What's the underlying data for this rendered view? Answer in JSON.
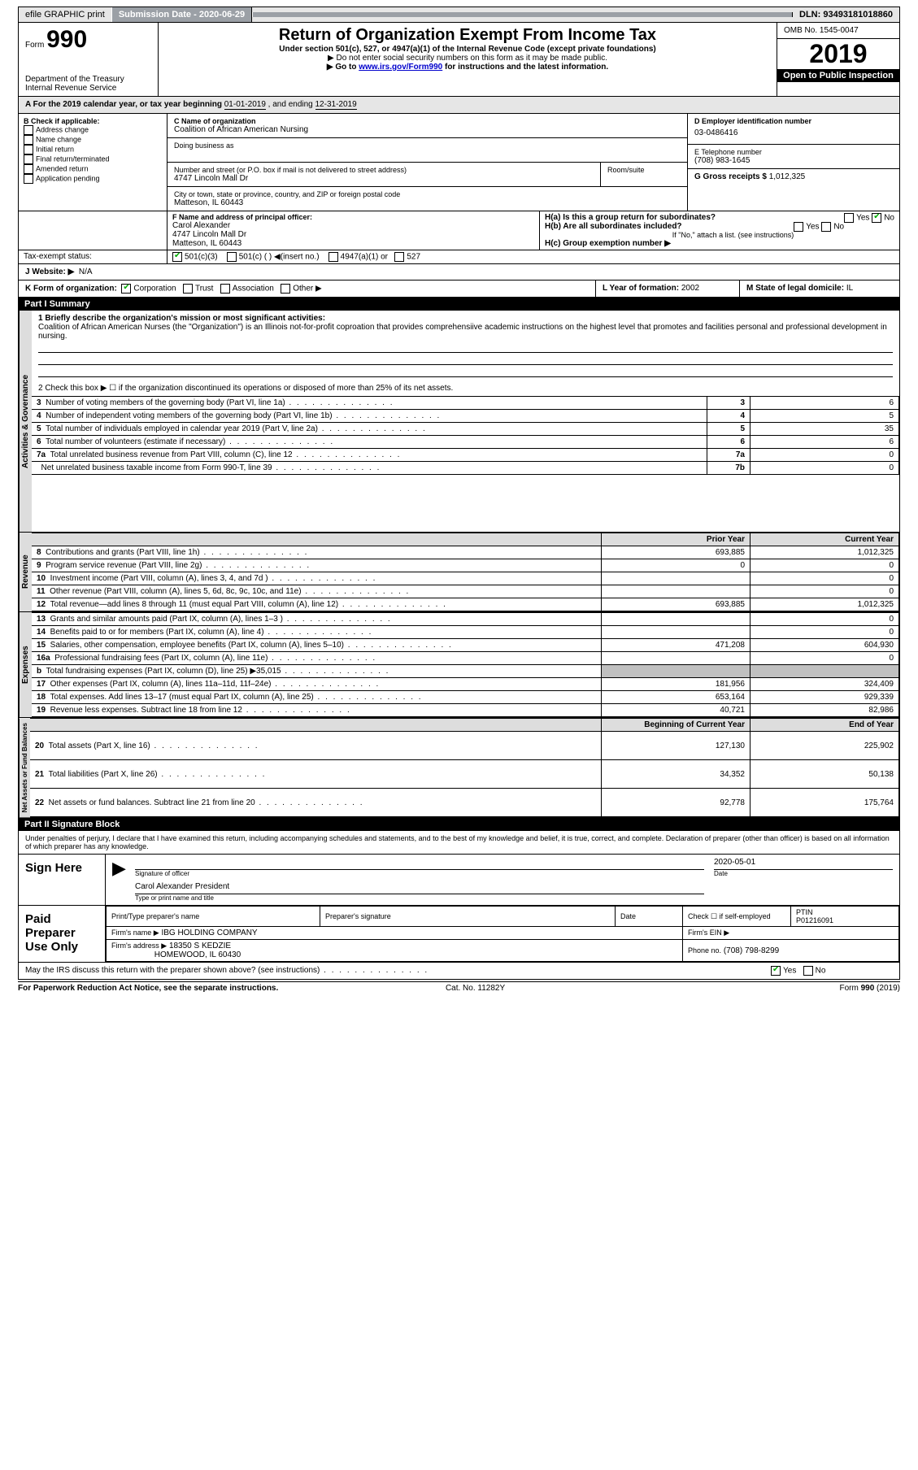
{
  "topbar": {
    "efile": "efile GRAPHIC print",
    "sub": "Submission Date - 2020-06-29",
    "dln": "DLN: 93493181018860"
  },
  "header": {
    "form": "Form",
    "form_num": "990",
    "dept": "Department of the Treasury\nInternal Revenue Service",
    "title": "Return of Organization Exempt From Income Tax",
    "sub1": "Under section 501(c), 527, or 4947(a)(1) of the Internal Revenue Code (except private foundations)",
    "sub2": "Do not enter social security numbers on this form as it may be made public.",
    "sub3_pre": "Go to ",
    "sub3_link": "www.irs.gov/Form990",
    "sub3_post": " for instructions and the latest information.",
    "omb": "OMB No. 1545-0047",
    "year": "2019",
    "open": "Open to Public Inspection"
  },
  "period": {
    "label_a": "A For the 2019 calendar year, or tax year beginning ",
    "begin": "01-01-2019",
    "mid": " , and ending ",
    "end": "12-31-2019"
  },
  "b": {
    "label": "B Check if applicable:",
    "opts": [
      "Address change",
      "Name change",
      "Initial return",
      "Final return/terminated",
      "Amended return",
      "Application pending"
    ]
  },
  "c": {
    "name_label": "C Name of organization",
    "name": "Coalition of African American Nursing",
    "dba_label": "Doing business as",
    "addr_label": "Number and street (or P.O. box if mail is not delivered to street address)",
    "room_label": "Room/suite",
    "addr": "4747 Lincoln Mall Dr",
    "city_label": "City or town, state or province, country, and ZIP or foreign postal code",
    "city": "Matteson, IL  60443"
  },
  "d": {
    "label": "D Employer identification number",
    "val": "03-0486416"
  },
  "e": {
    "label": "E Telephone number",
    "val": "(708) 983-1645"
  },
  "g": {
    "label": "G Gross receipts $",
    "val": "1,012,325"
  },
  "f": {
    "label": "F  Name and address of principal officer:",
    "name": "Carol Alexander",
    "addr": "4747 Lincoln Mall Dr",
    "city": "Matteson, IL  60443"
  },
  "h": {
    "a_label": "H(a)  Is this a group return for subordinates?",
    "b_label": "H(b)  Are all subordinates included?",
    "b_note": "If \"No,\" attach a list. (see instructions)",
    "c_label": "H(c)  Group exemption number ▶"
  },
  "i": {
    "label": "Tax-exempt status:",
    "opts": [
      "501(c)(3)",
      "501(c) (  ) ◀(insert no.)",
      "4947(a)(1) or",
      "527"
    ]
  },
  "j": {
    "label": "J   Website: ▶",
    "val": "N/A"
  },
  "k": {
    "label": "K Form of organization:",
    "opts": [
      "Corporation",
      "Trust",
      "Association",
      "Other ▶"
    ]
  },
  "l": {
    "label": "L Year of formation:",
    "val": "2002"
  },
  "m": {
    "label": "M State of legal domicile:",
    "val": "IL"
  },
  "part1": {
    "hdr": "Part I      Summary"
  },
  "summary": {
    "sections": [
      "Activities & Governance",
      "Revenue",
      "Expenses",
      "Net Assets or Fund Balances"
    ],
    "l1_label": "1  Briefly describe the organization's mission or most significant activities:",
    "l1_text": "Coalition of African American Nurses (the \"Organization\") is an Illinois not-for-profit coproation that provides comprehensiive academic instructions on the highest level that promotes and facilities personal and professional development in nursing.",
    "l2": "2   Check this box ▶ ☐  if the organization discontinued its operations or disposed of more than 25% of its net assets.",
    "prior_hdr": "Prior Year",
    "current_hdr": "Current Year",
    "rows": [
      {
        "n": "3",
        "t": "Number of voting members of the governing body (Part VI, line 1a)",
        "box": "3",
        "cur": "6"
      },
      {
        "n": "4",
        "t": "Number of independent voting members of the governing body (Part VI, line 1b)",
        "box": "4",
        "cur": "5"
      },
      {
        "n": "5",
        "t": "Total number of individuals employed in calendar year 2019 (Part V, line 2a)",
        "box": "5",
        "cur": "35"
      },
      {
        "n": "6",
        "t": "Total number of volunteers (estimate if necessary)",
        "box": "6",
        "cur": "6"
      },
      {
        "n": "7a",
        "t": "Total unrelated business revenue from Part VIII, column (C), line 12",
        "box": "7a",
        "cur": "0"
      },
      {
        "n": "",
        "t": "Net unrelated business taxable income from Form 990-T, line 39",
        "box": "7b",
        "cur": "0"
      }
    ],
    "rev": [
      {
        "n": "8",
        "t": "Contributions and grants (Part VIII, line 1h)",
        "p": "693,885",
        "c": "1,012,325"
      },
      {
        "n": "9",
        "t": "Program service revenue (Part VIII, line 2g)",
        "p": "0",
        "c": "0"
      },
      {
        "n": "10",
        "t": "Investment income (Part VIII, column (A), lines 3, 4, and 7d )",
        "p": "",
        "c": "0"
      },
      {
        "n": "11",
        "t": "Other revenue (Part VIII, column (A), lines 5, 6d, 8c, 9c, 10c, and 11e)",
        "p": "",
        "c": "0"
      },
      {
        "n": "12",
        "t": "Total revenue—add lines 8 through 11 (must equal Part VIII, column (A), line 12)",
        "p": "693,885",
        "c": "1,012,325"
      }
    ],
    "exp": [
      {
        "n": "13",
        "t": "Grants and similar amounts paid (Part IX, column (A), lines 1–3 )",
        "p": "",
        "c": "0"
      },
      {
        "n": "14",
        "t": "Benefits paid to or for members (Part IX, column (A), line 4)",
        "p": "",
        "c": "0"
      },
      {
        "n": "15",
        "t": "Salaries, other compensation, employee benefits (Part IX, column (A), lines 5–10)",
        "p": "471,208",
        "c": "604,930"
      },
      {
        "n": "16a",
        "t": "Professional fundraising fees (Part IX, column (A), line 11e)",
        "p": "",
        "c": "0"
      },
      {
        "n": "b",
        "t": "Total fundraising expenses (Part IX, column (D), line 25) ▶35,015",
        "p": "GREY",
        "c": "GREY"
      },
      {
        "n": "17",
        "t": "Other expenses (Part IX, column (A), lines 11a–11d, 11f–24e)",
        "p": "181,956",
        "c": "324,409"
      },
      {
        "n": "18",
        "t": "Total expenses. Add lines 13–17 (must equal Part IX, column (A), line 25)",
        "p": "653,164",
        "c": "929,339"
      },
      {
        "n": "19",
        "t": "Revenue less expenses. Subtract line 18 from line 12",
        "p": "40,721",
        "c": "82,986"
      }
    ],
    "boy_hdr": "Beginning of Current Year",
    "eoy_hdr": "End of Year",
    "na": [
      {
        "n": "20",
        "t": "Total assets (Part X, line 16)",
        "p": "127,130",
        "c": "225,902"
      },
      {
        "n": "21",
        "t": "Total liabilities (Part X, line 26)",
        "p": "34,352",
        "c": "50,138"
      },
      {
        "n": "22",
        "t": "Net assets or fund balances. Subtract line 21 from line 20",
        "p": "92,778",
        "c": "175,764"
      }
    ]
  },
  "part2": {
    "hdr": "Part II      Signature Block",
    "decl": "Under penalties of perjury, I declare that I have examined this return, including accompanying schedules and statements, and to the best of my knowledge and belief, it is true, correct, and complete. Declaration of preparer (other than officer) is based on all information of which preparer has any knowledge.",
    "sign_here": "Sign Here",
    "sig_label": "Signature of officer",
    "date_label": "Date",
    "date_val": "2020-05-01",
    "name_title": "Carol Alexander  President",
    "name_title_label": "Type or print name and title",
    "paid": "Paid Preparer Use Only",
    "p_name_label": "Print/Type preparer's name",
    "p_sig_label": "Preparer's signature",
    "p_date_label": "Date",
    "p_check": "Check ☐ if self-employed",
    "ptin_label": "PTIN",
    "ptin": "P01216091",
    "firm_name_label": "Firm's name    ▶",
    "firm_name": "IBG HOLDING COMPANY",
    "firm_ein_label": "Firm's EIN ▶",
    "firm_addr_label": "Firm's address ▶",
    "firm_addr": "18350 S KEDZIE",
    "firm_city": "HOMEWOOD, IL  60430",
    "phone_label": "Phone no.",
    "phone": "(708) 798-8299",
    "discuss": "May the IRS discuss this return with the preparer shown above? (see instructions)",
    "yes": "Yes",
    "no": "No"
  },
  "footer": {
    "l": "For Paperwork Reduction Act Notice, see the separate instructions.",
    "m": "Cat. No. 11282Y",
    "r": "Form 990 (2019)"
  }
}
